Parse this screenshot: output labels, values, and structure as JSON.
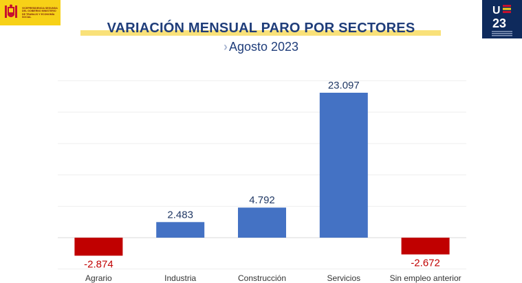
{
  "header": {
    "gov_logo_text": "VICEPRESIDENCIA SEGUNDA DEL GOBIERNO MINISTERIO DE TRABAJO Y ECONOMÍA SOCIAL",
    "eu_logo_text": "UE 23"
  },
  "colors": {
    "positive": "#4472c4",
    "negative": "#c00000",
    "positive_label": "#203864",
    "negative_label": "#c00000",
    "title": "#1f3d7a",
    "title_highlight": "#f9e179"
  },
  "chart_data": {
    "type": "bar",
    "title": "VARIACIÓN MENSUAL PARO POR SECTORES",
    "subtitle": "Agosto 2023",
    "categories": [
      "Agrario",
      "Industria",
      "Construcción",
      "Servicios",
      "Sin empleo anterior"
    ],
    "values": [
      -2874,
      2483,
      4792,
      23097,
      -2672
    ],
    "value_labels": [
      "-2.874",
      "2.483",
      "4.792",
      "23.097",
      "-2.672"
    ],
    "ylim": [
      -5000,
      25000
    ],
    "grid": true,
    "legend": "none"
  }
}
